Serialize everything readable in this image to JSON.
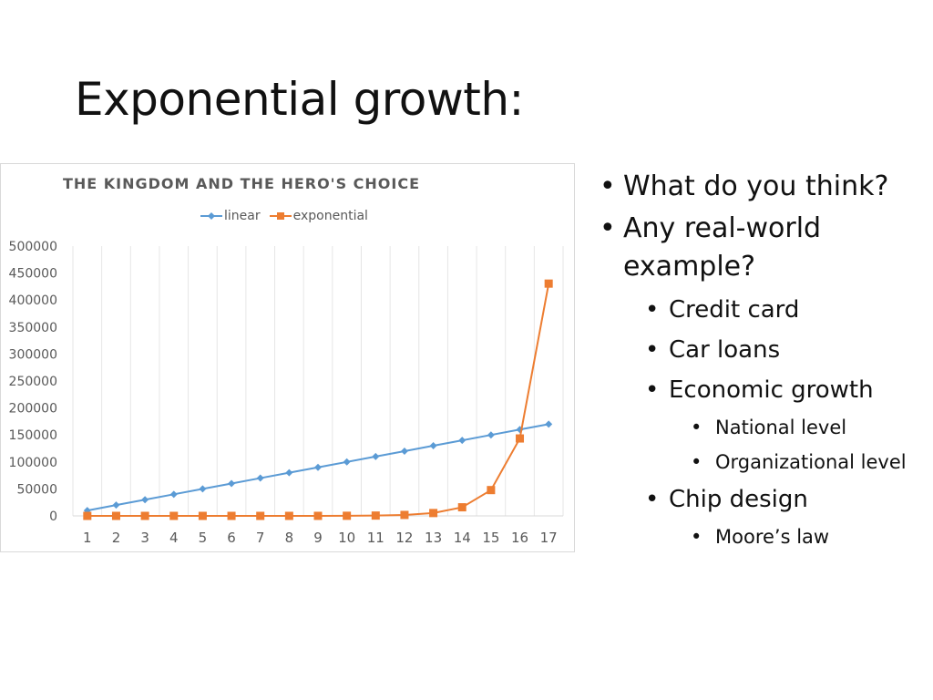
{
  "slide": {
    "title": "Exponential growth:"
  },
  "bullets": [
    {
      "level": 1,
      "text": "What do you think?"
    },
    {
      "level": 1,
      "text": "Any real-world example?"
    },
    {
      "level": 2,
      "text": "Credit card"
    },
    {
      "level": 2,
      "text": "Car loans"
    },
    {
      "level": 2,
      "text": "Economic growth"
    },
    {
      "level": 3,
      "text": "National level"
    },
    {
      "level": 3,
      "text": "Organizational level"
    },
    {
      "level": 2,
      "text": "Chip design"
    },
    {
      "level": 3,
      "text": "Moore’s law"
    }
  ],
  "bullet_glyph": "•",
  "colors": {
    "linear": "#5b9bd5",
    "exponential": "#ed7d31",
    "grid": "#e6e6e6",
    "axis_text": "#595959"
  },
  "chart_data": {
    "type": "line",
    "title": "THE KINGDOM AND THE HERO'S CHOICE",
    "xlabel": "",
    "ylabel": "",
    "categories": [
      "1",
      "2",
      "3",
      "4",
      "5",
      "6",
      "7",
      "8",
      "9",
      "10",
      "11",
      "12",
      "13",
      "14",
      "15",
      "16",
      "17"
    ],
    "series": [
      {
        "name": "linear",
        "marker": "diamond",
        "color": "#5b9bd5",
        "values": [
          10000,
          20000,
          30000,
          40000,
          50000,
          60000,
          70000,
          80000,
          90000,
          100000,
          110000,
          120000,
          130000,
          140000,
          150000,
          160000,
          170000
        ]
      },
      {
        "name": "exponential",
        "marker": "square",
        "color": "#ed7d31",
        "values": [
          10,
          30,
          90,
          270,
          810,
          2430,
          7290,
          21870,
          65610,
          196830,
          590490,
          1771,
          5314,
          15943,
          47830,
          143489,
          430467
        ]
      }
    ],
    "yticks": [
      "0",
      "50000",
      "100000",
      "150000",
      "200000",
      "250000",
      "300000",
      "350000",
      "400000",
      "450000",
      "500000"
    ],
    "ylim": [
      0,
      500000
    ],
    "grid": "vertical",
    "legend_position": "top"
  }
}
